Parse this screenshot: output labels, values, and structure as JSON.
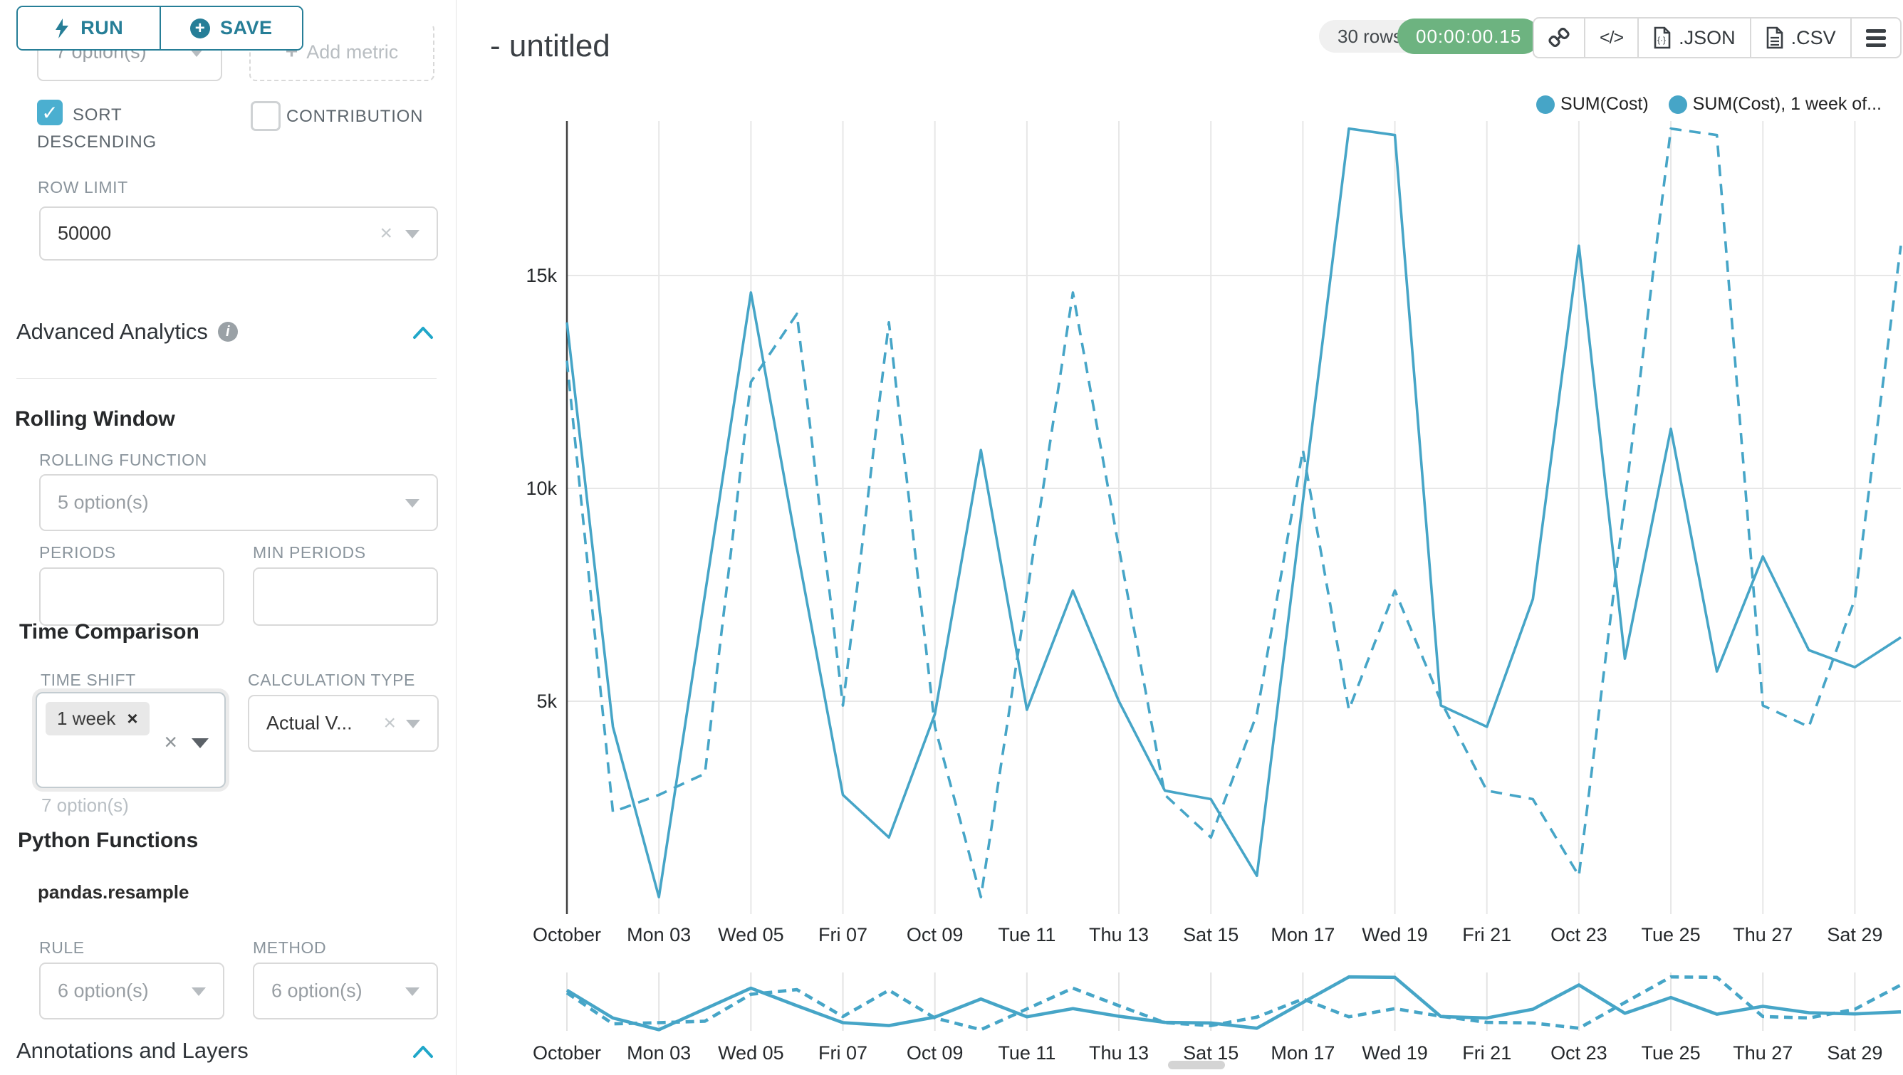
{
  "sidebar": {
    "run_label": "RUN",
    "save_label": "SAVE",
    "groupby_value": "7 option(s)",
    "add_metric_label": "Add metric",
    "sort_descending_label_line1": "SORT",
    "sort_descending_label_line2": "DESCENDING",
    "contribution_label": "CONTRIBUTION",
    "row_limit_label": "ROW LIMIT",
    "row_limit_value": "50000",
    "advanced_analytics_title": "Advanced Analytics",
    "rolling_window_title": "Rolling Window",
    "rolling_function_label": "ROLLING FUNCTION",
    "rolling_function_value": "5 option(s)",
    "periods_label": "PERIODS",
    "min_periods_label": "MIN PERIODS",
    "time_comparison_title": "Time Comparison",
    "time_shift_label": "TIME SHIFT",
    "time_shift_tag": "1 week",
    "time_shift_helper": "7 option(s)",
    "calculation_type_label": "CALCULATION TYPE",
    "calculation_type_value": "Actual V...",
    "python_functions_title": "Python Functions",
    "pandas_resample_label": "pandas.resample",
    "rule_label": "RULE",
    "rule_value": "6 option(s)",
    "method_label": "METHOD",
    "method_value": "6 option(s)",
    "annotations_title": "Annotations and Layers"
  },
  "header": {
    "title": "- untitled",
    "rows_badge": "30 rows",
    "timer_badge": "00:00:00.15",
    "export_json_label": ".JSON",
    "export_csv_label": ".CSV"
  },
  "colors": {
    "accent_teal": "#267e97",
    "chevron_teal": "#20a7c9",
    "checkbox_teal": "#4bafd0",
    "timer_green": "#6db380",
    "line_color": "#46a5c7",
    "grid_color": "#e7e7e7",
    "axis_color": "#3f3f3f"
  },
  "chart_data": {
    "type": "line",
    "title": "- untitled",
    "x_axis": "date (daily, Oct 01 - Oct 30)",
    "y_axis": "SUM(Cost)",
    "ylim": [
      0,
      18580
    ],
    "grid": true,
    "legend_position": "top-right",
    "has_mini_preview": true,
    "x_ticks": [
      {
        "day": 1,
        "label": "October"
      },
      {
        "day": 3,
        "label": "Mon 03"
      },
      {
        "day": 5,
        "label": "Wed 05"
      },
      {
        "day": 7,
        "label": "Fri 07"
      },
      {
        "day": 9,
        "label": "Oct 09"
      },
      {
        "day": 11,
        "label": "Tue 11"
      },
      {
        "day": 13,
        "label": "Thu 13"
      },
      {
        "day": 15,
        "label": "Sat 15"
      },
      {
        "day": 17,
        "label": "Mon 17"
      },
      {
        "day": 19,
        "label": "Wed 19"
      },
      {
        "day": 21,
        "label": "Fri 21"
      },
      {
        "day": 23,
        "label": "Oct 23"
      },
      {
        "day": 25,
        "label": "Tue 25"
      },
      {
        "day": 27,
        "label": "Thu 27"
      },
      {
        "day": 29,
        "label": "Sat 29"
      }
    ],
    "y_ticks": [
      {
        "value": 5000,
        "label": "5k"
      },
      {
        "value": 10000,
        "label": "10k"
      },
      {
        "value": 15000,
        "label": "15k"
      }
    ],
    "series": [
      {
        "name": "SUM(Cost)",
        "legend": "SUM(Cost)",
        "style": "solid",
        "values": [
          13900,
          4400,
          400,
          7500,
          14600,
          8600,
          2800,
          1800,
          4700,
          10900,
          4800,
          7600,
          5000,
          2900,
          2700,
          900,
          9700,
          18450,
          18300,
          4900,
          4400,
          7400,
          15700,
          6000,
          11400,
          5700,
          8400,
          6200,
          5800,
          6500
        ]
      },
      {
        "name": "SUM(Cost), 1 week offset",
        "legend": "SUM(Cost), 1 week of...",
        "style": "dashed",
        "values": [
          13000,
          2400,
          2800,
          3300,
          12500,
          14100,
          4900,
          13900,
          4400,
          400,
          7500,
          14600,
          8600,
          2800,
          1800,
          4700,
          10900,
          4800,
          7600,
          5000,
          2900,
          2700,
          900,
          9700,
          18450,
          18300,
          4900,
          4400,
          7400,
          15700
        ]
      }
    ]
  }
}
